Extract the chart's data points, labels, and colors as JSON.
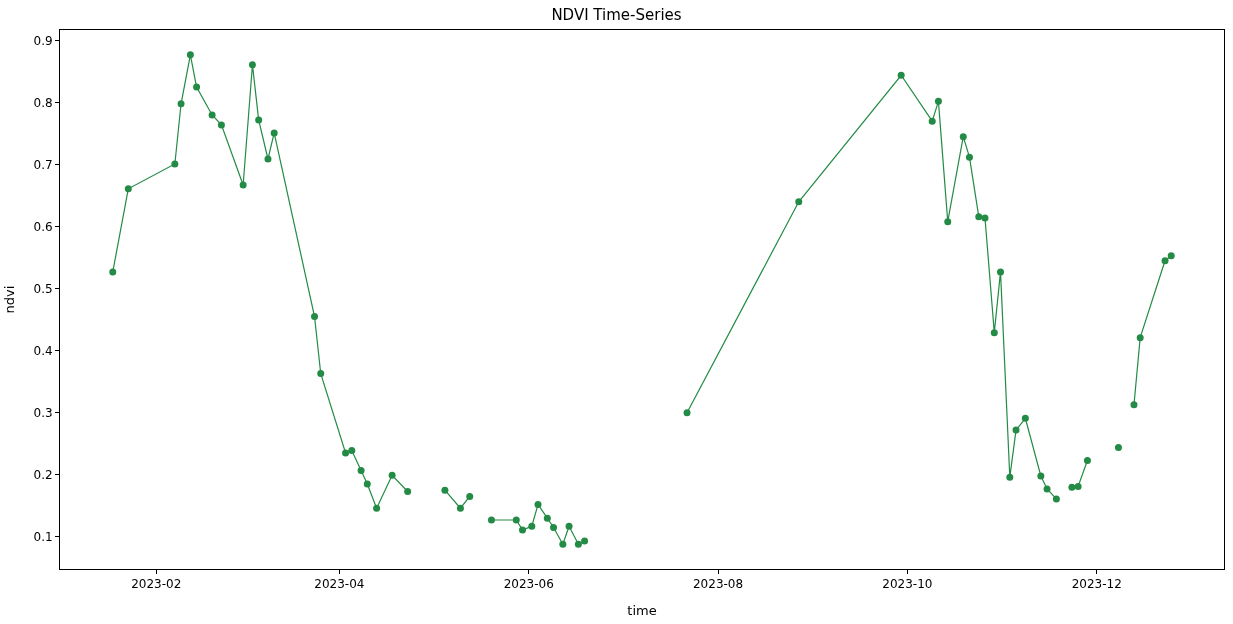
{
  "chart_data": {
    "type": "line",
    "title": "NDVI Time-Series",
    "xlabel": "time",
    "ylabel": "ndvi",
    "x": [
      "2023-01-18",
      "2023-01-23",
      "2023-02-07",
      "2023-02-09",
      "2023-02-12",
      "2023-02-14",
      "2023-02-19",
      "2023-02-22",
      "2023-03-01",
      "2023-03-04",
      "2023-03-06",
      "2023-03-09",
      "2023-03-11",
      "2023-03-24",
      "2023-03-26",
      "2023-04-03",
      "2023-04-05",
      "2023-04-08",
      "2023-04-10",
      "2023-04-13",
      "2023-04-18",
      "2023-04-23",
      "2023-04-29",
      "2023-05-05",
      "2023-05-10",
      "2023-05-13",
      "2023-05-16",
      "2023-05-20",
      "2023-05-28",
      "2023-05-30",
      "2023-06-02",
      "2023-06-04",
      "2023-06-07",
      "2023-06-09",
      "2023-06-12",
      "2023-06-14",
      "2023-06-17",
      "2023-06-19",
      "2023-07-05",
      "2023-07-22",
      "2023-08-27",
      "2023-09-29",
      "2023-10-09",
      "2023-10-11",
      "2023-10-14",
      "2023-10-19",
      "2023-10-21",
      "2023-10-24",
      "2023-10-26",
      "2023-10-29",
      "2023-10-31",
      "2023-11-03",
      "2023-11-05",
      "2023-11-08",
      "2023-11-13",
      "2023-11-15",
      "2023-11-18",
      "2023-11-20",
      "2023-11-23",
      "2023-11-25",
      "2023-11-28",
      "2023-12-03",
      "2023-12-08",
      "2023-12-10",
      "2023-12-13",
      "2023-12-15",
      "2023-12-23",
      "2023-12-25"
    ],
    "series": [
      {
        "color": "#238b45",
        "values": [
          0.527,
          0.661,
          0.701,
          0.798,
          0.877,
          0.825,
          0.78,
          0.764,
          0.667,
          0.861,
          0.772,
          0.709,
          0.751,
          0.455,
          0.363,
          0.235,
          0.239,
          0.207,
          0.185,
          0.146,
          0.199,
          0.173,
          null,
          0.175,
          0.146,
          0.165,
          null,
          0.127,
          0.127,
          0.111,
          0.117,
          0.152,
          0.13,
          0.115,
          0.088,
          0.117,
          0.088,
          0.093,
          null,
          0.3,
          0.64,
          0.844,
          0.77,
          0.802,
          0.608,
          0.745,
          0.712,
          0.616,
          0.614,
          0.429,
          0.527,
          0.196,
          0.272,
          0.291,
          0.198,
          0.177,
          0.161,
          null,
          0.18,
          0.181,
          0.223,
          null,
          0.244,
          null,
          0.313,
          0.421,
          0.545,
          0.553
        ]
      }
    ],
    "xlim": [
      "2023-01-01",
      "2024-01-11"
    ],
    "xticks": [
      {
        "value": "2023-02-01",
        "label": "2023-02"
      },
      {
        "value": "2023-04-01",
        "label": "2023-04"
      },
      {
        "value": "2023-06-01",
        "label": "2023-06"
      },
      {
        "value": "2023-08-01",
        "label": "2023-08"
      },
      {
        "value": "2023-10-01",
        "label": "2023-10"
      },
      {
        "value": "2023-12-01",
        "label": "2023-12"
      }
    ],
    "ylim": [
      0.048,
      0.917
    ],
    "yticks": [
      0.1,
      0.2,
      0.3,
      0.4,
      0.5,
      0.6,
      0.7,
      0.8,
      0.9
    ],
    "marker": "circle",
    "line_style": "solid"
  }
}
